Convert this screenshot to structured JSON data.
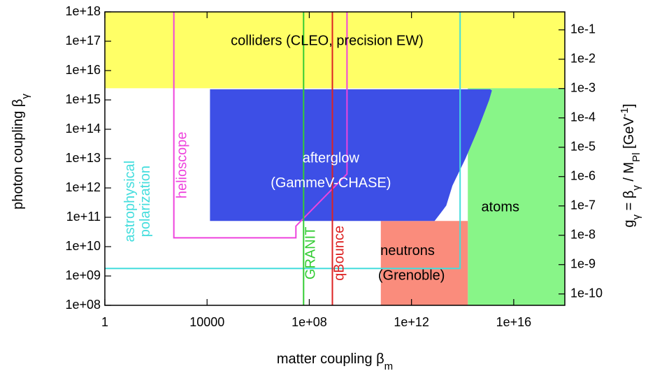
{
  "chart_data": {
    "type": "area",
    "x_scale": "log10",
    "y_scale": "log10",
    "xlim": [
      1,
      1e+18
    ],
    "ylim": [
      100000000.0,
      1e+18
    ],
    "xlabel": "matter coupling β",
    "xlabel_sub": "m",
    "ylabel": "photon coupling β",
    "ylabel_sub": "γ",
    "y2label_parts": [
      "g",
      "γ",
      " = β",
      "γ",
      " / M",
      "Pl",
      " [GeV",
      "-1",
      "]"
    ],
    "x_ticks": [
      {
        "value": 1,
        "label": "1"
      },
      {
        "value": 10000,
        "label": "10000"
      },
      {
        "value": 100000000.0,
        "label": "1e+08"
      },
      {
        "value": 1000000000000.0,
        "label": "1e+12"
      },
      {
        "value": 1e+16,
        "label": "1e+16"
      }
    ],
    "y_ticks": [
      {
        "value": 100000000.0,
        "label": "1e+08"
      },
      {
        "value": 1000000000.0,
        "label": "1e+09"
      },
      {
        "value": 10000000000.0,
        "label": "1e+10"
      },
      {
        "value": 100000000000.0,
        "label": "1e+11"
      },
      {
        "value": 1000000000000.0,
        "label": "1e+12"
      },
      {
        "value": 10000000000000.0,
        "label": "1e+13"
      },
      {
        "value": 100000000000000.0,
        "label": "1e+14"
      },
      {
        "value": 1000000000000000.0,
        "label": "1e+15"
      },
      {
        "value": 1e+16,
        "label": "1e+16"
      },
      {
        "value": 1e+17,
        "label": "1e+17"
      },
      {
        "value": 1e+18,
        "label": "1e+18"
      }
    ],
    "y2_ticks": [
      {
        "value": 244000000.0,
        "label": "1e-10"
      },
      {
        "value": 2440000000.0,
        "label": "1e-9"
      },
      {
        "value": 24400000000.0,
        "label": "1e-8"
      },
      {
        "value": 244000000000.0,
        "label": "1e-7"
      },
      {
        "value": 2440000000000.0,
        "label": "1e-6"
      },
      {
        "value": 24400000000000.0,
        "label": "1e-5"
      },
      {
        "value": 244000000000000.0,
        "label": "1e-4"
      },
      {
        "value": 2440000000000000.0,
        "label": "1e-3"
      },
      {
        "value": 2.44e+16,
        "label": "1e-2"
      },
      {
        "value": 2.44e+17,
        "label": "1e-1"
      }
    ],
    "regions": [
      {
        "id": "colliders",
        "shape": "rect",
        "xmin": 1,
        "xmax": 1e+18,
        "ymin": 2500000000000000.0,
        "ymax": 1e+18,
        "color": "#ffff66"
      },
      {
        "id": "atoms",
        "shape": "rect",
        "xmin": 160000000000000.0,
        "xmax": 1e+18,
        "ymin": 100000000.0,
        "ymax": 2500000000000000.0,
        "color": "#88f588"
      },
      {
        "id": "neutrons",
        "shape": "rect",
        "xmin": 63000000000.0,
        "xmax": 160000000000000.0,
        "ymin": 100000000.0,
        "ymax": 75000000000.0,
        "color": "#fa8c7c"
      },
      {
        "id": "afterglow",
        "shape": "polygon",
        "color": "#3d4fe6",
        "points": [
          [
            13000.0,
            2300000000000000.0
          ],
          [
            1200000000000000.0,
            2300000000000000.0
          ],
          [
            1400000000000000.0,
            2100000000000000.0
          ],
          [
            1100000000000000.0,
            1000000000000000.0
          ],
          [
            400000000000000.0,
            100000000000000.0
          ],
          [
            130000000000000.0,
            10000000000000.0
          ],
          [
            40000000000000.0,
            1200000000000.0
          ],
          [
            23000000000000.0,
            250000000000.0
          ],
          [
            13000000000000.0,
            130000000000.0
          ],
          [
            8000000000000.0,
            75000000000.0
          ],
          [
            13000.0,
            75000000000.0
          ]
        ]
      }
    ],
    "curves": [
      {
        "id": "helioscope",
        "color": "#ee44dd",
        "points": [
          [
            500,
            1e+18
          ],
          [
            500,
            20000000000.0
          ],
          [
            30000000.0,
            20000000000.0
          ],
          [
            30000000.0,
            50000000000.0
          ],
          [
            3000000000.0,
            3000000000000.0
          ],
          [
            3000000000.0,
            1e+18
          ]
        ]
      },
      {
        "id": "astrophysical-polarization",
        "color": "#44dddd",
        "points": [
          [
            1,
            1800000000.0
          ],
          [
            80000000000000.0,
            1800000000.0
          ],
          [
            80000000000000.0,
            1e+18
          ]
        ]
      },
      {
        "id": "granit",
        "color": "#33cc33",
        "points": [
          [
            60000000.0,
            100000000.0
          ],
          [
            60000000.0,
            1e+18
          ]
        ]
      },
      {
        "id": "qbounce",
        "color": "#dd2222",
        "points": [
          [
            800000000.0,
            100000000.0
          ],
          [
            800000000.0,
            1e+18
          ]
        ]
      }
    ],
    "labels": [
      {
        "id": "colliders",
        "text": "colliders (CLEO, precision EW)",
        "x": 500000000.0,
        "y": 1e+17,
        "color": "#000000",
        "rotate": 0
      },
      {
        "id": "afterglow-1",
        "text": "afterglow",
        "x": 700000000.0,
        "y": 10000000000000.0,
        "color": "#ffffff",
        "rotate": 0
      },
      {
        "id": "afterglow-2",
        "text": "(GammeV-CHASE)",
        "x": 700000000.0,
        "y": 1400000000000.0,
        "color": "#ffffff",
        "rotate": 0
      },
      {
        "id": "atoms",
        "text": "atoms",
        "x": 3000000000000000.0,
        "y": 210000000000.0,
        "color": "#000000",
        "rotate": 0
      },
      {
        "id": "neutrons-1",
        "text": "neutrons",
        "x": 700000000000.0,
        "y": 7000000000.0,
        "color": "#000000",
        "rotate": 0
      },
      {
        "id": "neutrons-2",
        "text": "(Grenoble)",
        "x": 1000000000000.0,
        "y": 1000000000.0,
        "color": "#000000",
        "rotate": 0
      },
      {
        "id": "helioscope",
        "text": "helioscope",
        "x": 1100,
        "y": 6000000000000.0,
        "color": "#ee44dd",
        "rotate": -90
      },
      {
        "id": "astro-1",
        "text": "astrophysical",
        "x": 10,
        "y": 350000000000.0,
        "color": "#44dddd",
        "rotate": -90
      },
      {
        "id": "astro-2",
        "text": "polarization",
        "x": 40,
        "y": 350000000000.0,
        "color": "#44dddd",
        "rotate": -90
      },
      {
        "id": "granit",
        "text": "GRANIT",
        "x": 120000000.0,
        "y": 6000000000.0,
        "color": "#33cc33",
        "rotate": -90
      },
      {
        "id": "qbounce",
        "text": "qBounce",
        "x": 1600000000.0,
        "y": 6000000000.0,
        "color": "#dd2222",
        "rotate": -90
      }
    ]
  }
}
